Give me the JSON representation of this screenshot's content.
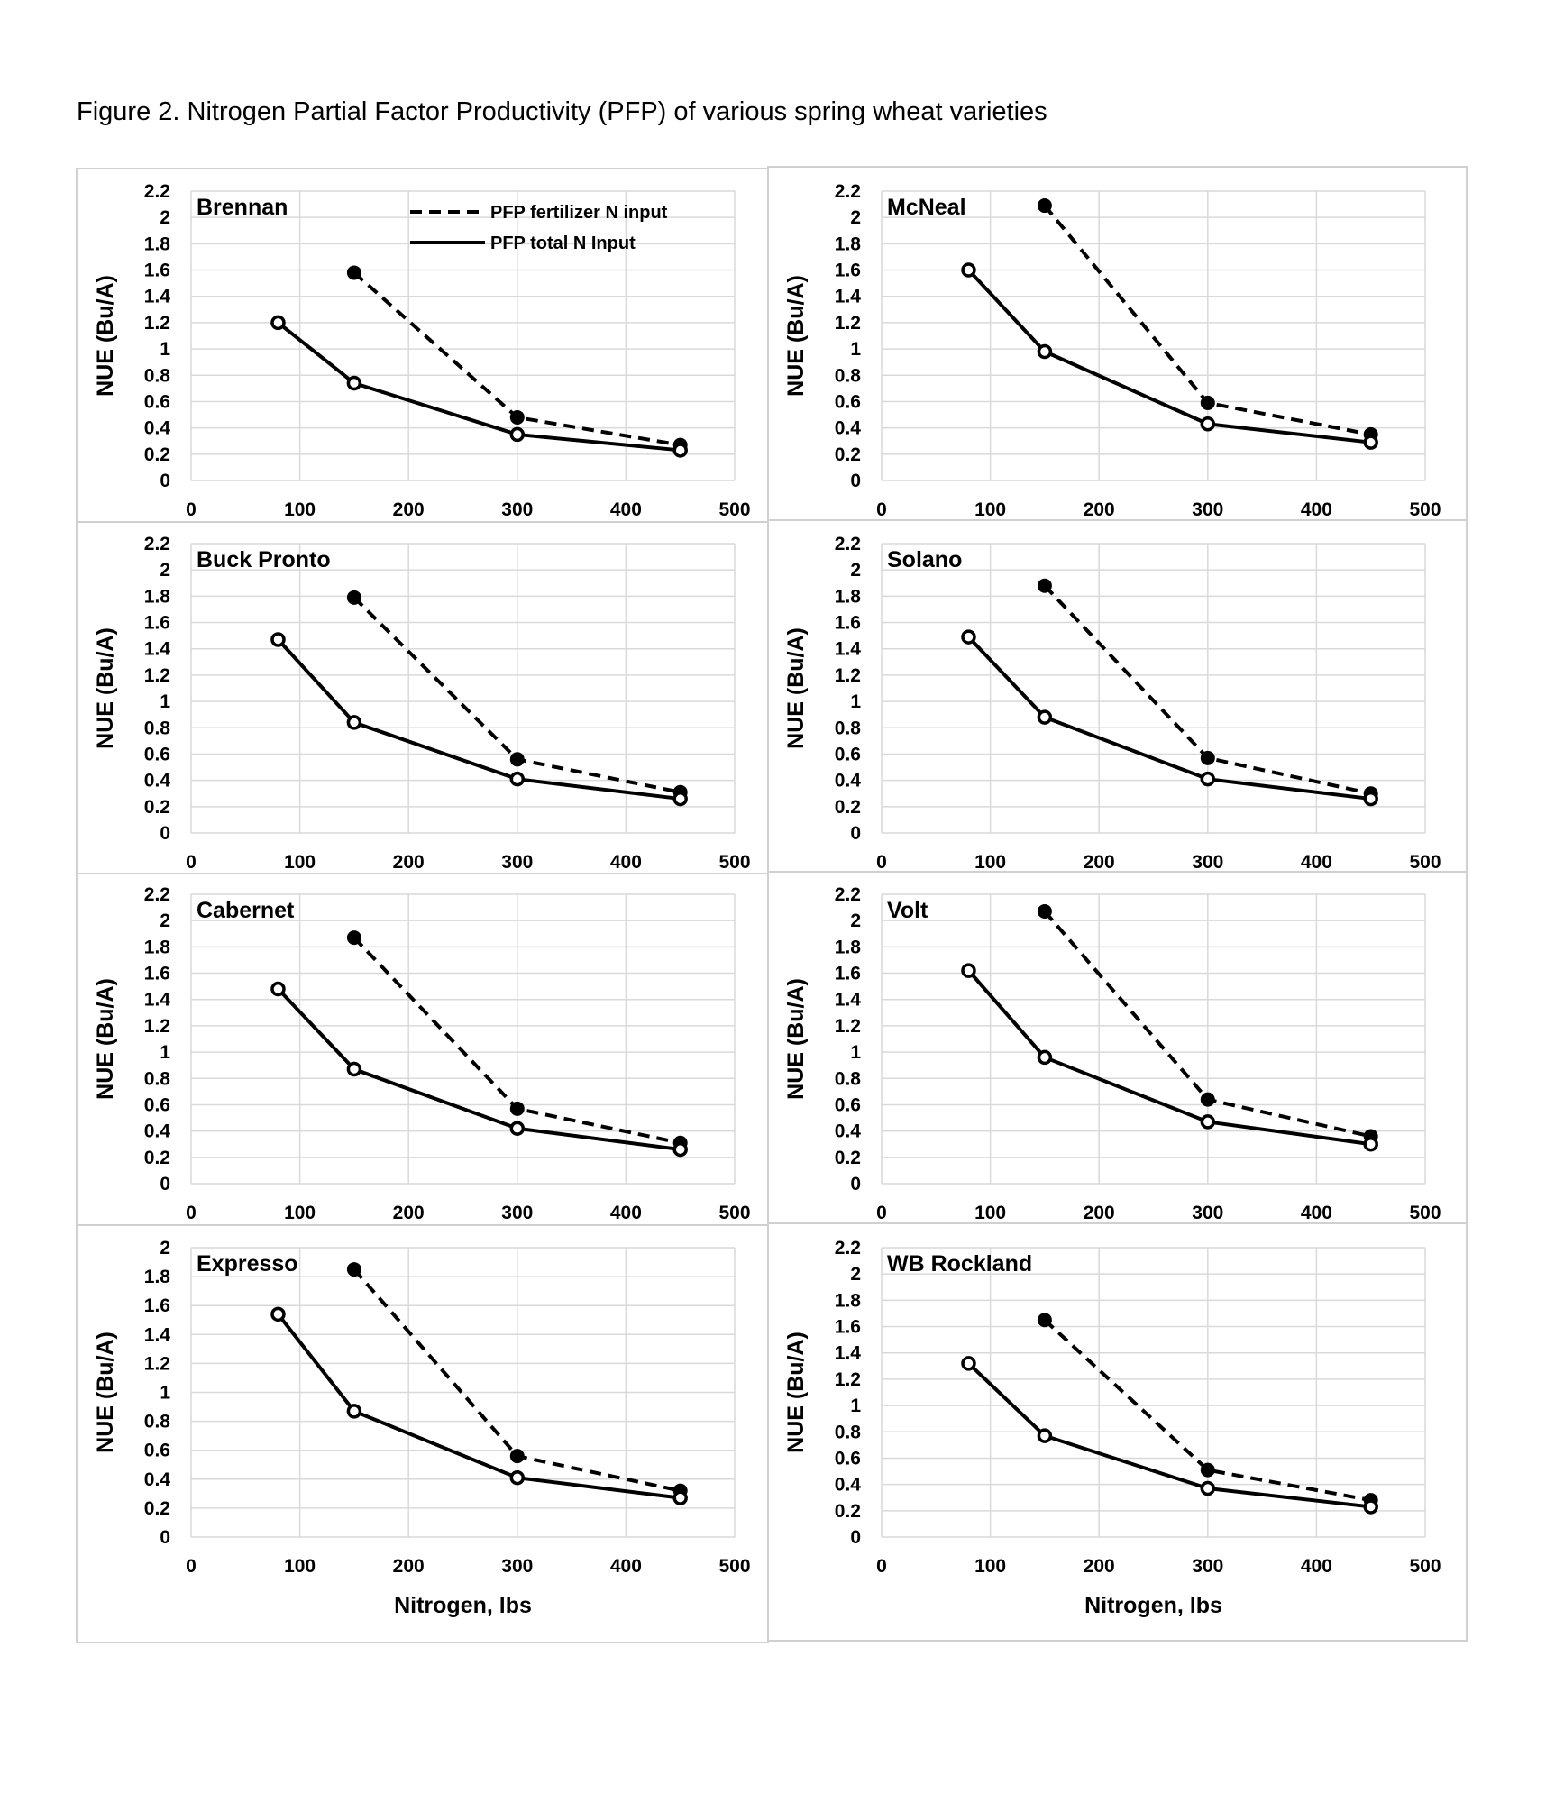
{
  "figure": {
    "title": "Figure 2. Nitrogen Partial Factor Productivity (PFP) of various spring wheat varieties"
  },
  "colors": {
    "line": "#000000",
    "grid": "#d9d9d9",
    "frame": "#d0d0d0",
    "background": "#ffffff"
  },
  "chart_data": [
    {
      "type": "line",
      "title": "Brennan",
      "xlabel": "",
      "ylabel": "NUE (Bu/A)",
      "xlim": [
        0,
        500
      ],
      "xticks": [
        0,
        100,
        200,
        300,
        400,
        500
      ],
      "ylim": [
        0,
        2.2
      ],
      "yticks": [
        "0",
        "0.2",
        "0.4",
        "0.6",
        "0.8",
        "1",
        "1.2",
        "1.4",
        "1.6",
        "1.8",
        "2",
        "2.2"
      ],
      "grid": true,
      "legend": {
        "placement": "top-right",
        "entries": [
          "PFP fertilizer N input",
          "PFP total N Input"
        ]
      },
      "series": [
        {
          "name": "PFP fertilizer N input",
          "style": "dashed",
          "marker": "filled-circle",
          "x": [
            150,
            300,
            450
          ],
          "y": [
            1.58,
            0.48,
            0.27
          ]
        },
        {
          "name": "PFP total N Input",
          "style": "solid",
          "marker": "open-circle",
          "x": [
            80,
            150,
            300,
            450
          ],
          "y": [
            1.2,
            0.74,
            0.35,
            0.23
          ]
        }
      ]
    },
    {
      "type": "line",
      "title": "McNeal",
      "xlabel": "",
      "ylabel": "NUE (Bu/A)",
      "xlim": [
        0,
        500
      ],
      "xticks": [
        0,
        100,
        200,
        300,
        400,
        500
      ],
      "ylim": [
        0,
        2.2
      ],
      "yticks": [
        "0",
        "0.2",
        "0.4",
        "0.6",
        "0.8",
        "1",
        "1.2",
        "1.4",
        "1.6",
        "1.8",
        "2",
        "2.2"
      ],
      "grid": true,
      "series": [
        {
          "style": "dashed",
          "marker": "filled-circle",
          "x": [
            150,
            300,
            450
          ],
          "y": [
            2.09,
            0.59,
            0.35
          ]
        },
        {
          "style": "solid",
          "marker": "open-circle",
          "x": [
            80,
            150,
            300,
            450
          ],
          "y": [
            1.6,
            0.98,
            0.43,
            0.29
          ]
        }
      ]
    },
    {
      "type": "line",
      "title": "Buck Pronto",
      "xlabel": "",
      "ylabel": "NUE (Bu/A)",
      "xlim": [
        0,
        500
      ],
      "xticks": [
        0,
        100,
        200,
        300,
        400,
        500
      ],
      "ylim": [
        0,
        2.2
      ],
      "yticks": [
        "0",
        "0.2",
        "0.4",
        "0.6",
        "0.8",
        "1",
        "1.2",
        "1.4",
        "1.6",
        "1.8",
        "2",
        "2.2"
      ],
      "grid": true,
      "series": [
        {
          "style": "dashed",
          "marker": "filled-circle",
          "x": [
            150,
            300,
            450
          ],
          "y": [
            1.79,
            0.56,
            0.31
          ]
        },
        {
          "style": "solid",
          "marker": "open-circle",
          "x": [
            80,
            150,
            300,
            450
          ],
          "y": [
            1.47,
            0.84,
            0.41,
            0.26
          ]
        }
      ]
    },
    {
      "type": "line",
      "title": "Solano",
      "xlabel": "",
      "ylabel": "NUE (Bu/A)",
      "xlim": [
        0,
        500
      ],
      "xticks": [
        0,
        100,
        200,
        300,
        400,
        500
      ],
      "ylim": [
        0,
        2.2
      ],
      "yticks": [
        "0",
        "0.2",
        "0.4",
        "0.6",
        "0.8",
        "1",
        "1.2",
        "1.4",
        "1.6",
        "1.8",
        "2",
        "2.2"
      ],
      "grid": true,
      "series": [
        {
          "style": "dashed",
          "marker": "filled-circle",
          "x": [
            150,
            300,
            450
          ],
          "y": [
            1.88,
            0.57,
            0.3
          ]
        },
        {
          "style": "solid",
          "marker": "open-circle",
          "x": [
            80,
            150,
            300,
            450
          ],
          "y": [
            1.49,
            0.88,
            0.41,
            0.26
          ]
        }
      ]
    },
    {
      "type": "line",
      "title": "Cabernet",
      "xlabel": "",
      "ylabel": "NUE (Bu/A)",
      "xlim": [
        0,
        500
      ],
      "xticks": [
        0,
        100,
        200,
        300,
        400,
        500
      ],
      "ylim": [
        0,
        2.2
      ],
      "yticks": [
        "0",
        "0.2",
        "0.4",
        "0.6",
        "0.8",
        "1",
        "1.2",
        "1.4",
        "1.6",
        "1.8",
        "2",
        "2.2"
      ],
      "grid": true,
      "series": [
        {
          "style": "dashed",
          "marker": "filled-circle",
          "x": [
            150,
            300,
            450
          ],
          "y": [
            1.87,
            0.57,
            0.31
          ]
        },
        {
          "style": "solid",
          "marker": "open-circle",
          "x": [
            80,
            150,
            300,
            450
          ],
          "y": [
            1.48,
            0.87,
            0.42,
            0.26
          ]
        }
      ]
    },
    {
      "type": "line",
      "title": "Volt",
      "xlabel": "",
      "ylabel": "NUE (Bu/A)",
      "xlim": [
        0,
        500
      ],
      "xticks": [
        0,
        100,
        200,
        300,
        400,
        500
      ],
      "ylim": [
        0,
        2.2
      ],
      "yticks": [
        "0",
        "0.2",
        "0.4",
        "0.6",
        "0.8",
        "1",
        "1.2",
        "1.4",
        "1.6",
        "1.8",
        "2",
        "2.2"
      ],
      "grid": true,
      "series": [
        {
          "style": "dashed",
          "marker": "filled-circle",
          "x": [
            150,
            300,
            450
          ],
          "y": [
            2.07,
            0.64,
            0.36
          ]
        },
        {
          "style": "solid",
          "marker": "open-circle",
          "x": [
            80,
            150,
            300,
            450
          ],
          "y": [
            1.62,
            0.96,
            0.47,
            0.3
          ]
        }
      ]
    },
    {
      "type": "line",
      "title": "Expresso",
      "xlabel": "Nitrogen, lbs",
      "ylabel": "NUE (Bu/A)",
      "xlim": [
        0,
        500
      ],
      "xticks": [
        0,
        100,
        200,
        300,
        400,
        500
      ],
      "ylim": [
        0,
        2
      ],
      "yticks": [
        "0",
        "0.2",
        "0.4",
        "0.6",
        "0.8",
        "1",
        "1.2",
        "1.4",
        "1.6",
        "1.8",
        "2"
      ],
      "grid": true,
      "series": [
        {
          "style": "dashed",
          "marker": "filled-circle",
          "x": [
            150,
            300,
            450
          ],
          "y": [
            1.85,
            0.56,
            0.32
          ]
        },
        {
          "style": "solid",
          "marker": "open-circle",
          "x": [
            80,
            150,
            300,
            450
          ],
          "y": [
            1.54,
            0.87,
            0.41,
            0.27
          ]
        }
      ]
    },
    {
      "type": "line",
      "title": "WB Rockland",
      "xlabel": "Nitrogen, lbs",
      "ylabel": "NUE (Bu/A)",
      "xlim": [
        0,
        500
      ],
      "xticks": [
        0,
        100,
        200,
        300,
        400,
        500
      ],
      "ylim": [
        0,
        2.2
      ],
      "yticks": [
        "0",
        "0.2",
        "0.4",
        "0.6",
        "0.8",
        "1",
        "1.2",
        "1.4",
        "1.6",
        "1.8",
        "2",
        "2.2"
      ],
      "grid": true,
      "series": [
        {
          "style": "dashed",
          "marker": "filled-circle",
          "x": [
            150,
            300,
            450
          ],
          "y": [
            1.65,
            0.51,
            0.28
          ]
        },
        {
          "style": "solid",
          "marker": "open-circle",
          "x": [
            80,
            150,
            300,
            450
          ],
          "y": [
            1.32,
            0.77,
            0.37,
            0.23
          ]
        }
      ]
    }
  ]
}
